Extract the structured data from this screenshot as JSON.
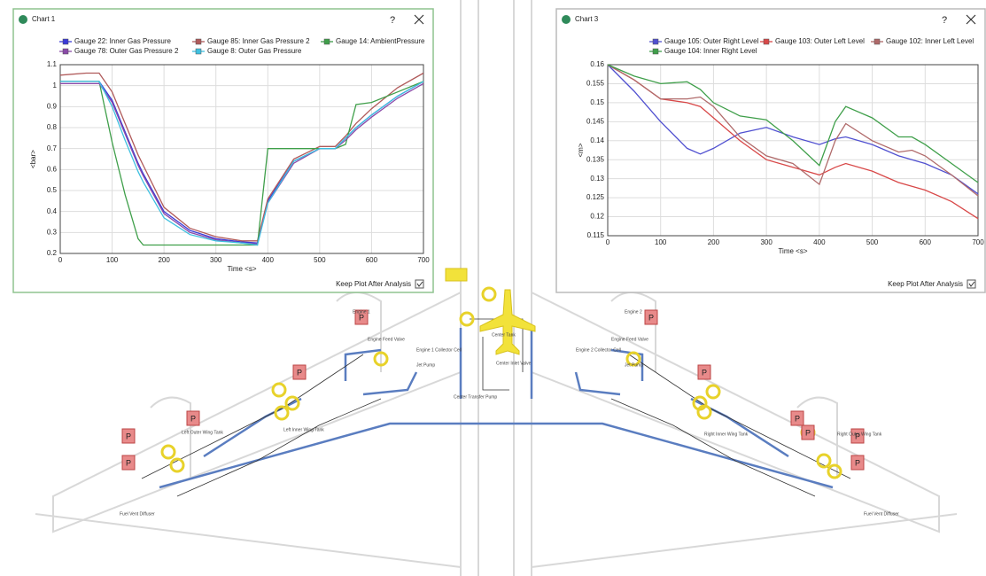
{
  "windows": [
    {
      "title": "Chart 1",
      "help": "?",
      "keep": "Keep Plot After Analysis"
    },
    {
      "title": "Chart 3",
      "help": "?",
      "keep": "Keep Plot After Analysis"
    }
  ],
  "chart_data": [
    {
      "type": "line",
      "x_label": "Time <s>",
      "y_label": "<bar>",
      "x": [
        0,
        50,
        75,
        100,
        125,
        150,
        160,
        200,
        250,
        300,
        350,
        380,
        400,
        450,
        500,
        530,
        550,
        570,
        600,
        650,
        700
      ],
      "xlim": [
        0,
        700
      ],
      "xticks": [
        0,
        100,
        200,
        300,
        400,
        500,
        600,
        700
      ],
      "ylim": [
        0.2,
        1.1
      ],
      "yticks": [
        0.2,
        0.3,
        0.4,
        0.5,
        0.6,
        0.7,
        0.8,
        0.9,
        1,
        1.1
      ],
      "grid": true,
      "series": [
        {
          "name": "Gauge 22: Inner Gas Pressure",
          "color": "#3a3ad8",
          "values": [
            1.02,
            1.02,
            1.02,
            0.93,
            0.78,
            0.63,
            0.58,
            0.4,
            0.31,
            0.27,
            0.255,
            0.25,
            0.45,
            0.64,
            0.7,
            0.7,
            0.75,
            0.8,
            0.86,
            0.95,
            1.02
          ]
        },
        {
          "name": "Gauge 85: Inner Gas Pressure 2",
          "color": "#b05a5a",
          "values": [
            1.05,
            1.06,
            1.06,
            0.97,
            0.82,
            0.67,
            0.62,
            0.42,
            0.32,
            0.28,
            0.26,
            0.26,
            0.46,
            0.65,
            0.71,
            0.71,
            0.76,
            0.82,
            0.89,
            0.99,
            1.06
          ]
        },
        {
          "name": "Gauge 14: AmbientPressure",
          "color": "#3f9f4a",
          "values": [
            1.02,
            1.02,
            1.02,
            0.73,
            0.48,
            0.27,
            0.24,
            0.24,
            0.24,
            0.24,
            0.24,
            0.24,
            0.7,
            0.7,
            0.7,
            0.7,
            0.72,
            0.91,
            0.92,
            0.97,
            1.02
          ]
        },
        {
          "name": "Gauge 78: Outer Gas Pressure 2",
          "color": "#8a4aa8",
          "values": [
            1.01,
            1.01,
            1.01,
            0.92,
            0.77,
            0.62,
            0.57,
            0.39,
            0.3,
            0.265,
            0.25,
            0.245,
            0.44,
            0.63,
            0.7,
            0.7,
            0.74,
            0.79,
            0.85,
            0.94,
            1.01
          ]
        },
        {
          "name": "Gauge 8: Outer Gas Pressure",
          "color": "#3ec0e0",
          "values": [
            1.02,
            1.02,
            1.02,
            0.9,
            0.74,
            0.59,
            0.54,
            0.37,
            0.29,
            0.26,
            0.25,
            0.24,
            0.44,
            0.64,
            0.7,
            0.7,
            0.75,
            0.8,
            0.86,
            0.95,
            1.02
          ]
        }
      ]
    },
    {
      "type": "line",
      "x_label": "Time <s>",
      "y_label": "<m>",
      "x": [
        0,
        50,
        100,
        150,
        175,
        200,
        250,
        300,
        350,
        400,
        430,
        450,
        500,
        550,
        575,
        600,
        650,
        700
      ],
      "xlim": [
        0,
        700
      ],
      "xticks": [
        0,
        100,
        200,
        300,
        400,
        500,
        600,
        700
      ],
      "ylim": [
        0.115,
        0.16
      ],
      "yticks": [
        0.115,
        0.12,
        0.125,
        0.13,
        0.135,
        0.14,
        0.145,
        0.15,
        0.155,
        0.16
      ],
      "grid": true,
      "series": [
        {
          "name": "Gauge 105: Outer Right Level",
          "color": "#5050d0",
          "values": [
            0.16,
            0.153,
            0.145,
            0.138,
            0.1365,
            0.138,
            0.142,
            0.1435,
            0.141,
            0.139,
            0.1405,
            0.141,
            0.139,
            0.136,
            0.135,
            0.134,
            0.131,
            0.126
          ]
        },
        {
          "name": "Gauge 103: Outer Left Level",
          "color": "#d84848",
          "values": [
            0.16,
            0.156,
            0.151,
            0.15,
            0.149,
            0.146,
            0.14,
            0.135,
            0.133,
            0.131,
            0.133,
            0.134,
            0.132,
            0.129,
            0.128,
            0.127,
            0.124,
            0.1195
          ]
        },
        {
          "name": "Gauge 102: Inner Left Level",
          "color": "#b06a6a",
          "values": [
            0.16,
            0.156,
            0.151,
            0.151,
            0.1515,
            0.149,
            0.141,
            0.136,
            0.134,
            0.1285,
            0.14,
            0.1445,
            0.14,
            0.137,
            0.1375,
            0.136,
            0.131,
            0.1255
          ]
        },
        {
          "name": "Gauge 104: Inner Right Level",
          "color": "#3f9f4a",
          "values": [
            0.16,
            0.157,
            0.155,
            0.1555,
            0.1535,
            0.15,
            0.1465,
            0.1455,
            0.14,
            0.1335,
            0.145,
            0.149,
            0.146,
            0.141,
            0.141,
            0.139,
            0.134,
            0.129
          ]
        }
      ]
    }
  ],
  "schematic": {
    "pressure_symbol": "P",
    "labels": [
      "Engine 1",
      "Engine Feed Valve",
      "Engine 1 Collector Cell",
      "Jet Pump",
      "Center Tank",
      "Center Inlet Valve",
      "Center Transfer Pump",
      "Left Inner Wing Tank",
      "Left Outer Wing Tank",
      "Fuel Vent Diffuser",
      "Engine 2",
      "Engine Feed Valve",
      "Engine 2 Collector Cell",
      "Jet Pump",
      "Right Inner Wing Tank",
      "Right Outer Wing Tank",
      "Fuel Vent Diffuser"
    ]
  }
}
